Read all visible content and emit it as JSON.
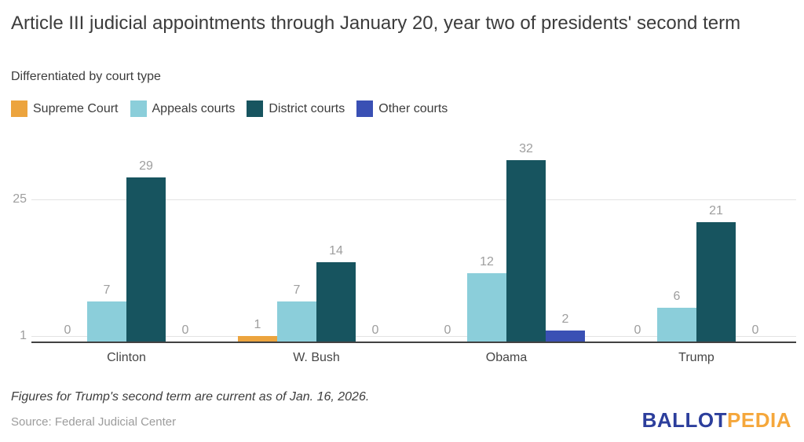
{
  "header": {
    "title": "Article III judicial appointments through January 20, year two of presidents' second term",
    "subtitle": "Differentiated by court type"
  },
  "chart_data": {
    "type": "bar",
    "categories": [
      "Clinton",
      "W. Bush",
      "Obama",
      "Trump"
    ],
    "series": [
      {
        "name": "Supreme Court",
        "color": "#eca43e",
        "values": [
          0,
          1,
          0,
          0
        ]
      },
      {
        "name": "Appeals courts",
        "color": "#8bceda",
        "values": [
          7,
          7,
          12,
          6
        ]
      },
      {
        "name": "District courts",
        "color": "#17545f",
        "values": [
          29,
          14,
          32,
          21
        ]
      },
      {
        "name": "Other courts",
        "color": "#3a50b4",
        "values": [
          0,
          0,
          2,
          0
        ]
      }
    ],
    "yticks": [
      1,
      25
    ],
    "ylim": [
      0,
      36
    ],
    "grid": "horizontal",
    "value_labels": true,
    "legend_position": "top",
    "xlabel": "",
    "ylabel": ""
  },
  "footer": {
    "note": "Figures for Trump's second term are current as of Jan. 16, 2026.",
    "source": "Source: Federal Judicial Center",
    "logo_part1": "BALLOT",
    "logo_part2": "PEDIA"
  },
  "colors": {
    "title_text": "#3c3c3c",
    "value_label": "#9e9e9e",
    "axis_line": "#424242",
    "gridline": "#e3e3e3",
    "logo_blue": "#2c3e9c",
    "logo_orange": "#f5a73b"
  }
}
